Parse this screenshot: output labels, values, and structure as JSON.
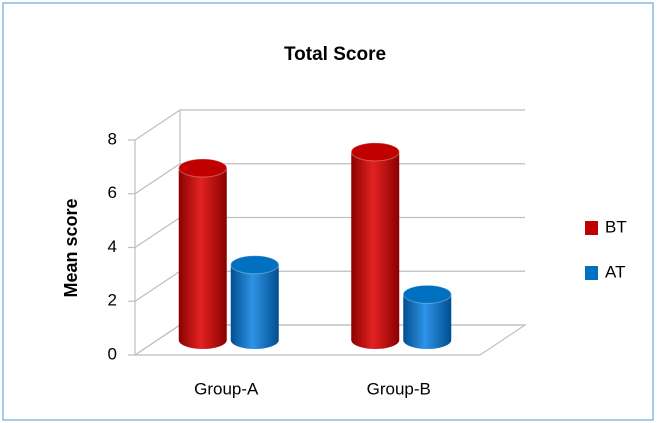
{
  "chart_data": {
    "type": "bar3d",
    "title": "Total Score",
    "y_label": "Mean score",
    "categories": [
      "Group-A",
      "Group-B"
    ],
    "series": [
      {
        "name": "BT",
        "color": "#c00000",
        "values": [
          6.4,
          7.0
        ]
      },
      {
        "name": "AT",
        "color": "#0070c0",
        "values": [
          2.8,
          1.7
        ]
      }
    ],
    "ylim": [
      0,
      8
    ],
    "yticks": [
      0,
      2,
      4,
      6,
      8
    ],
    "grid": true,
    "legend": "right"
  }
}
